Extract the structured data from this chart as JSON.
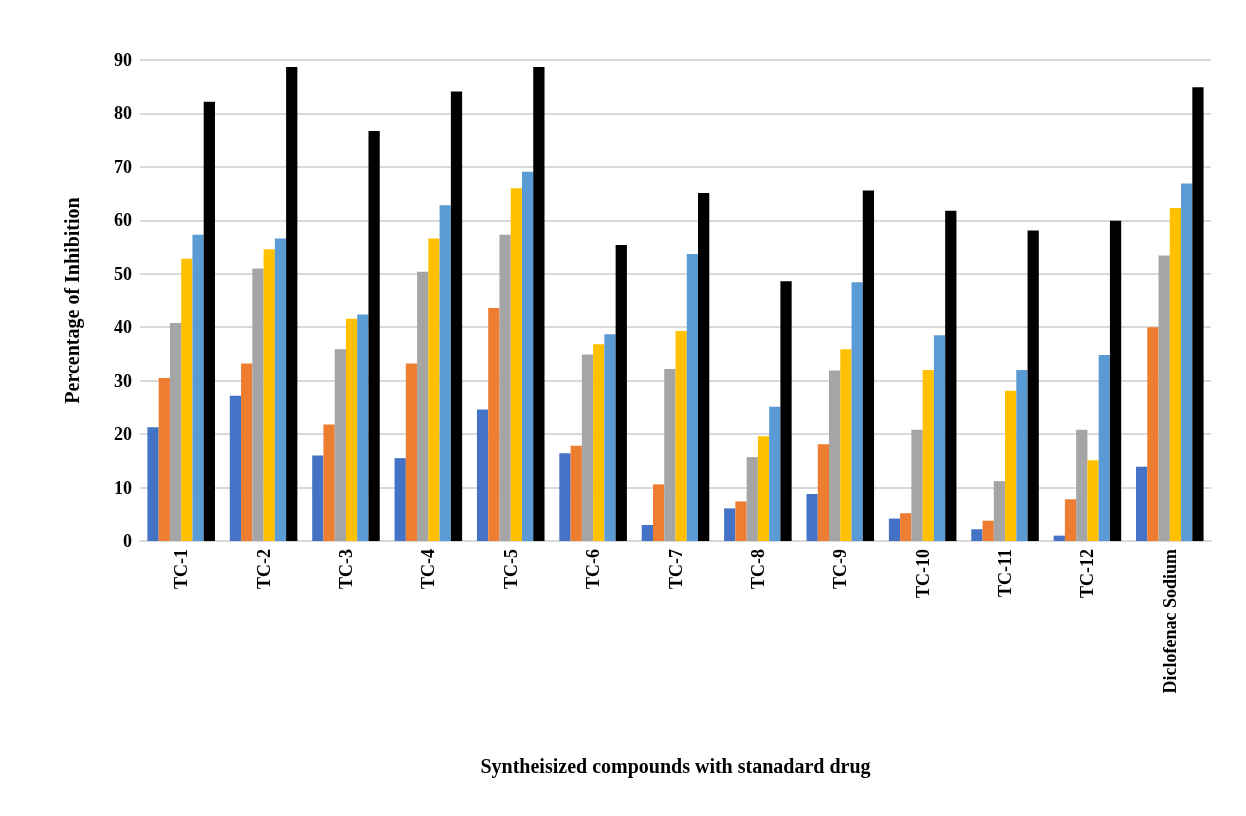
{
  "chart_data": {
    "type": "bar",
    "xlabel": "Syntheisized compounds with stanadard drug",
    "ylabel": "Percentage of Inhibition",
    "categories": [
      "TC-1",
      "TC-2",
      "TC-3",
      "TC-4",
      "TC-5",
      "TC-6",
      "TC-7",
      "TC-8",
      "TC-9",
      "TC-10",
      "TC-11",
      "TC-12",
      "Diclofenac Sodium"
    ],
    "series": [
      {
        "color": "#4472c4",
        "values": [
          21.3,
          27.2,
          16,
          15.5,
          24.6,
          16.4,
          3,
          6.1,
          8.8,
          4.2,
          2.2,
          1,
          13.9
        ]
      },
      {
        "color": "#ed7d31",
        "values": [
          30.5,
          33.2,
          21.8,
          33.2,
          43.6,
          17.8,
          10.6,
          7.4,
          18.1,
          5.2,
          3.8,
          7.8,
          40
        ]
      },
      {
        "color": "#a5a5a5",
        "values": [
          40.8,
          51,
          35.9,
          50.4,
          57.3,
          34.9,
          32.2,
          15.7,
          31.9,
          20.8,
          11.2,
          20.8,
          53.4
        ]
      },
      {
        "color": "#ffc000",
        "values": [
          52.8,
          54.6,
          41.6,
          56.6,
          66,
          36.8,
          39.3,
          19.6,
          35.9,
          32,
          28.1,
          15.1,
          62.3
        ]
      },
      {
        "color": "#5b9bd5",
        "values": [
          57.3,
          56.6,
          42.4,
          62.8,
          69.1,
          38.7,
          53.7,
          25.1,
          48.4,
          38.5,
          32,
          34.8,
          66.9
        ]
      },
      {
        "color": "#000000",
        "values": [
          82.2,
          88.7,
          76.7,
          84.1,
          88.7,
          55.4,
          65.1,
          48.6,
          65.6,
          61.8,
          58.1,
          59.9,
          84.9
        ]
      }
    ],
    "ylim": [
      0,
      90
    ],
    "yticks": [
      0,
      10,
      20,
      30,
      40,
      50,
      60,
      70,
      80,
      90
    ],
    "grid": "y"
  }
}
